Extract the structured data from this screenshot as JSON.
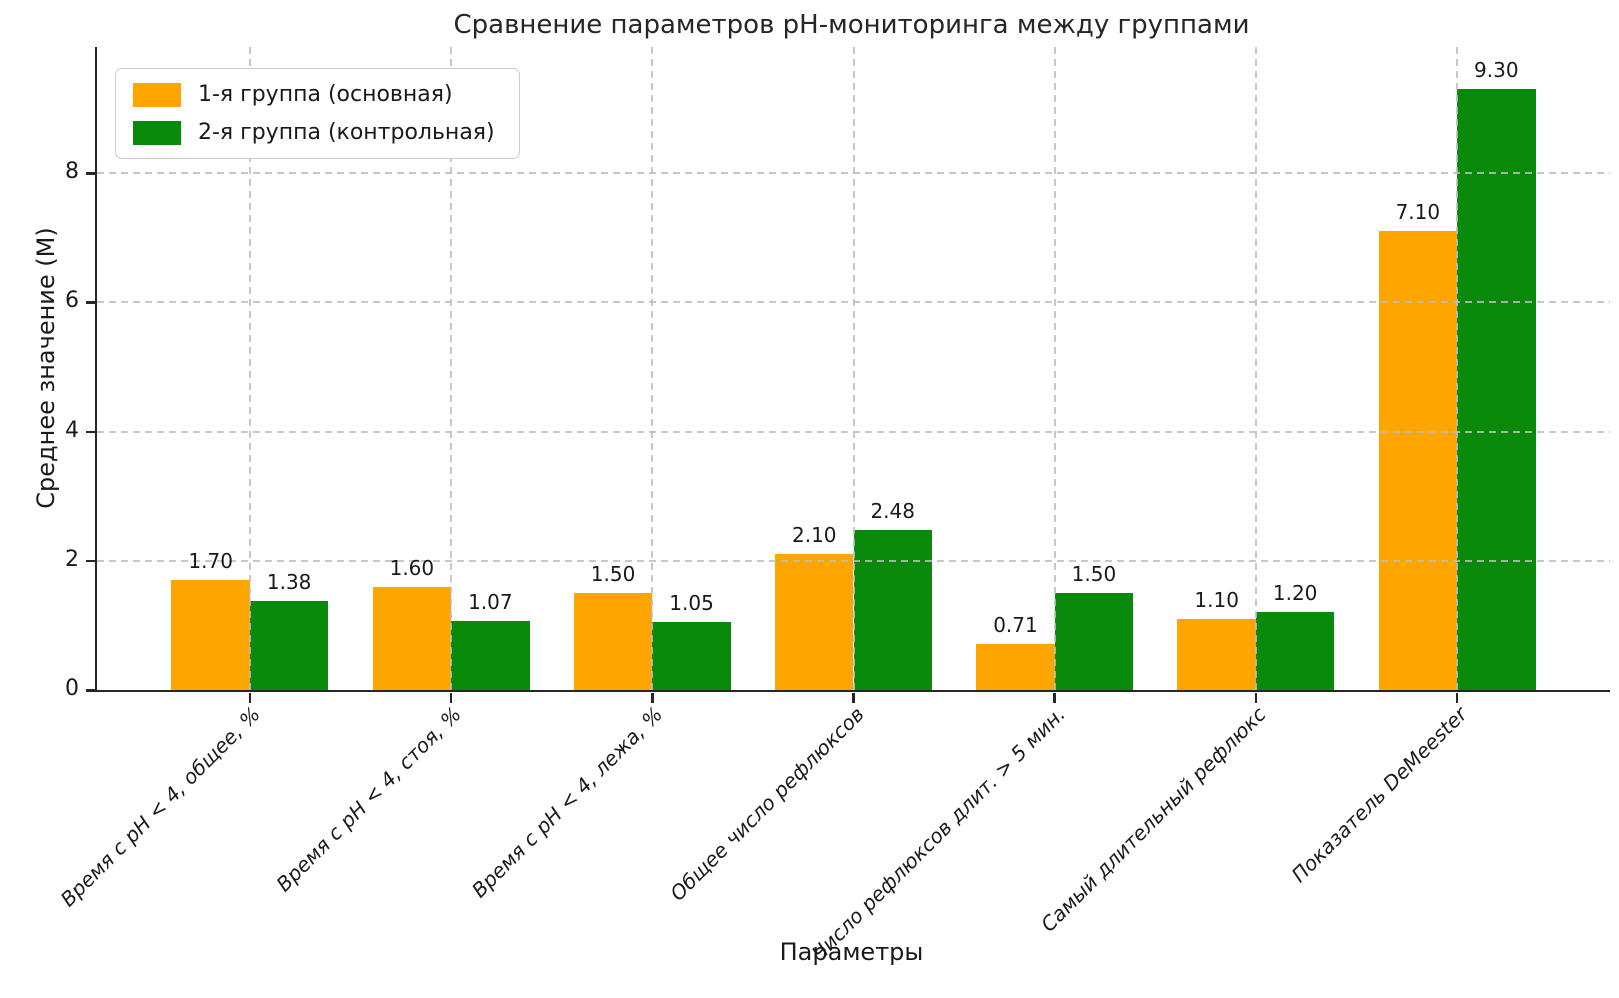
{
  "chart_data": {
    "type": "bar",
    "title": "Сравнение параметров pH-мониторинга между группами",
    "xlabel": "Параметры",
    "ylabel": "Среднее значение (М)",
    "ylim": [
      0,
      9.95
    ],
    "yticks": [
      {
        "value": 0,
        "label": "0"
      },
      {
        "value": 2,
        "label": "2"
      },
      {
        "value": 4,
        "label": "4"
      },
      {
        "value": 6,
        "label": "6"
      },
      {
        "value": 8,
        "label": "8"
      }
    ],
    "categories": [
      "Время с pH < 4, общее, %",
      "Время с pH < 4, стоя, %",
      "Время с pH < 4, лежа, %",
      "Общее число рефлюксов",
      "Число рефлюксов длит. > 5 мин.",
      "Самый длительный рефлюкс",
      "Показатель DeMeester"
    ],
    "series": [
      {
        "name": "1-я группа (основная)",
        "color": "#ffa500",
        "values": [
          1.7,
          1.6,
          1.5,
          2.1,
          0.71,
          1.1,
          7.1
        ],
        "value_labels": [
          "1.70",
          "1.60",
          "1.50",
          "2.10",
          "0.71",
          "1.10",
          "7.10"
        ]
      },
      {
        "name": "2-я группа (контрольная)",
        "color": "#0a8a0a",
        "values": [
          1.38,
          1.07,
          1.05,
          2.48,
          1.5,
          1.2,
          9.3
        ],
        "value_labels": [
          "1.38",
          "1.07",
          "1.05",
          "2.48",
          "1.50",
          "1.20",
          "9.30"
        ]
      }
    ],
    "grid": {
      "enabled": true,
      "style": "dashed",
      "axes": "both",
      "color": "#bebebe"
    },
    "legend_position": "upper-left",
    "x_range": [
      -0.76,
      6.76
    ],
    "bar_width_units": 0.39,
    "category_label_rotation_deg": 45,
    "category_label_style": "italic"
  }
}
